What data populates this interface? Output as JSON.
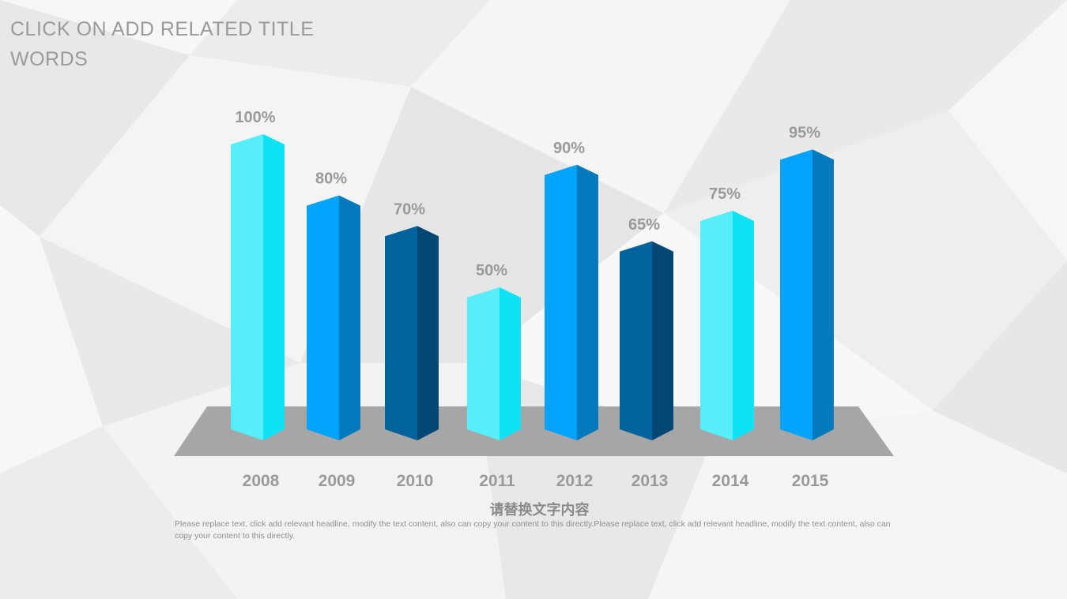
{
  "header": {
    "title_line1": "CLICK ON ADD RELATED TITLE",
    "title_line2": "WORDS"
  },
  "colors": {
    "background": "#f1f1f1",
    "floor": "#a6a6a6",
    "label": "#9a9a9a",
    "cyan_front": "#56eefb",
    "cyan_side": "#0de3f5",
    "blue_front": "#02a3fa",
    "blue_side": "#0079bd",
    "navy_front": "#01639e",
    "navy_side": "#004774"
  },
  "chart_data": {
    "type": "bar",
    "title": "",
    "xlabel": "",
    "ylabel": "",
    "ylim": [
      0,
      100
    ],
    "grid": false,
    "categories": [
      "2008",
      "2009",
      "2010",
      "2011",
      "2012",
      "2013",
      "2014",
      "2015"
    ],
    "values": [
      100,
      80,
      70,
      50,
      90,
      65,
      75,
      95
    ],
    "data_labels": [
      "100%",
      "80%",
      "70%",
      "50%",
      "90%",
      "65%",
      "75%",
      "95%"
    ],
    "bar_colors": [
      "cyan",
      "blue",
      "navy",
      "cyan",
      "blue",
      "navy",
      "cyan",
      "blue"
    ]
  },
  "caption": {
    "title": "请替换文字内容",
    "body": "Please replace text, click add relevant headline, modify the text content, also can copy your content to this directly.Please replace text, click add relevant headline, modify the text content, also can copy your content to this directly."
  }
}
